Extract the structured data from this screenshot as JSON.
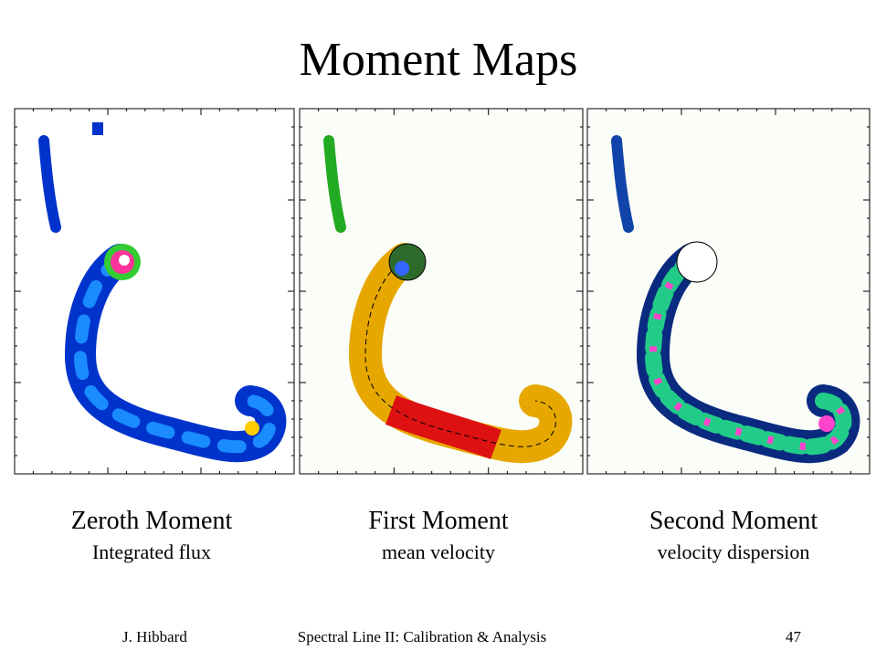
{
  "title": "Moment Maps",
  "panels": [
    {
      "caption": "Zeroth Moment",
      "subcaption": "Integrated flux"
    },
    {
      "caption": "First Moment",
      "subcaption": "mean velocity"
    },
    {
      "caption": "Second Moment",
      "subcaption": "velocity dispersion"
    }
  ],
  "footer": {
    "author": "J. Hibbard",
    "talk": "Spectral Line II: Calibration & Analysis",
    "page": "47"
  }
}
